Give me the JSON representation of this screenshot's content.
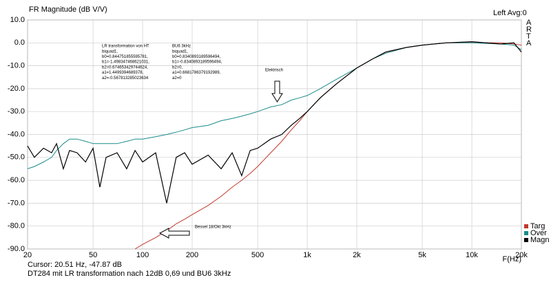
{
  "chart_data": {
    "type": "line",
    "title": "FR Magnitude (dB V/V)",
    "status": "Left  Avg:0",
    "brand": "ARTA",
    "xlabel": "F(Hz)",
    "log_x": true,
    "grid": true,
    "cursor": "Cursor: 20.51 Hz, -47.87 dB",
    "footer": "DT284 mit LR transformation nach 12dB 0,69 und BU6 3kHz",
    "annotations": [
      [
        "LR transformation von HT",
        "biquad1,",
        "b0=0.844751855595781,",
        "b1=-1.498347468621031,",
        "b2=0.674653429744624,",
        "a1=1.4499394689378,",
        "a2=-0.567813285023634"
      ],
      [
        "BU6 3kHz",
        "biquad1,",
        "b0=0.8340893189596494,",
        "b1=-0.8340893189596494,",
        "b2=0,",
        "a1=0.6681786379192989,",
        "a2=0"
      ],
      [
        "Elektrisch"
      ],
      [
        "Bessel 18/Okt 3kHz"
      ]
    ],
    "xlim": [
      20,
      20000
    ],
    "xticks": [
      20,
      50,
      100,
      200,
      500,
      {
        "value": 1000,
        "label": "1k"
      },
      {
        "value": 2000,
        "label": "2k"
      },
      {
        "value": 5000,
        "label": "5k"
      },
      {
        "value": 10000,
        "label": "10k"
      },
      {
        "value": 20000,
        "label": "20k"
      }
    ],
    "ylim": [
      -90,
      10
    ],
    "yticks": [
      {
        "value": 10,
        "label": "10.0"
      },
      {
        "value": 0,
        "label": "0.0"
      },
      {
        "value": -10,
        "label": "-10.0"
      },
      {
        "value": -20,
        "label": "-20.0"
      },
      {
        "value": -30,
        "label": "-30.0"
      },
      {
        "value": -40,
        "label": "-40.0"
      },
      {
        "value": -50,
        "label": "-50.0"
      },
      {
        "value": -60,
        "label": "-60.0"
      },
      {
        "value": -70,
        "label": "-70.0"
      },
      {
        "value": -80,
        "label": "-80.0"
      },
      {
        "value": -90,
        "label": "-90.0"
      }
    ],
    "x": [
      20,
      22,
      25,
      28,
      30,
      33,
      36,
      40,
      45,
      50,
      55,
      60,
      70,
      80,
      90,
      100,
      120,
      140,
      160,
      180,
      200,
      250,
      300,
      350,
      400,
      450,
      500,
      600,
      700,
      800,
      900,
      1000,
      1200,
      1500,
      2000,
      2500,
      3000,
      4000,
      5000,
      7000,
      10000,
      15000,
      18000,
      20000
    ],
    "series": [
      {
        "name": "Targ",
        "color": "#c0392b",
        "values": [
          null,
          null,
          null,
          null,
          null,
          null,
          null,
          null,
          null,
          null,
          null,
          null,
          null,
          null,
          -90,
          -88,
          -85,
          -82,
          -79,
          -77,
          -75,
          -71,
          -67,
          -63,
          -60,
          -57,
          -54,
          -48,
          -43,
          -38,
          -34,
          -30,
          -24,
          -18,
          -11,
          -7,
          -4.5,
          -2,
          -1,
          0,
          0,
          0,
          -0.5,
          -1
        ]
      },
      {
        "name": "Over",
        "color": "#1a8a8a",
        "values": [
          -55,
          -54,
          -52,
          -50,
          -47,
          -44,
          -42,
          -42,
          -43,
          -44,
          -44,
          -44,
          -44,
          -43,
          -42,
          -42,
          -41,
          -40,
          -39,
          -38,
          -37,
          -36,
          -34,
          -33,
          -32,
          -31,
          -30,
          -28,
          -27,
          -25,
          -24,
          -23,
          -20,
          -16,
          -11,
          -7,
          -4.5,
          -2,
          -1,
          0,
          0,
          -0.5,
          -1,
          -3
        ]
      },
      {
        "name": "Magn",
        "color": "#000000",
        "values": [
          -45,
          -50,
          -46,
          -48,
          -44,
          -55,
          -47,
          -48,
          -52,
          -46,
          -63,
          -50,
          -48,
          -55,
          -47,
          -52,
          -48,
          -70,
          -50,
          -48,
          -53,
          -49,
          -55,
          -48,
          -58,
          -47,
          -46,
          -42,
          -40,
          -36,
          -33,
          -30,
          -24,
          -18,
          -11,
          -7,
          -4,
          -2,
          -1,
          0,
          0.5,
          -0.5,
          0,
          -4
        ]
      }
    ]
  }
}
